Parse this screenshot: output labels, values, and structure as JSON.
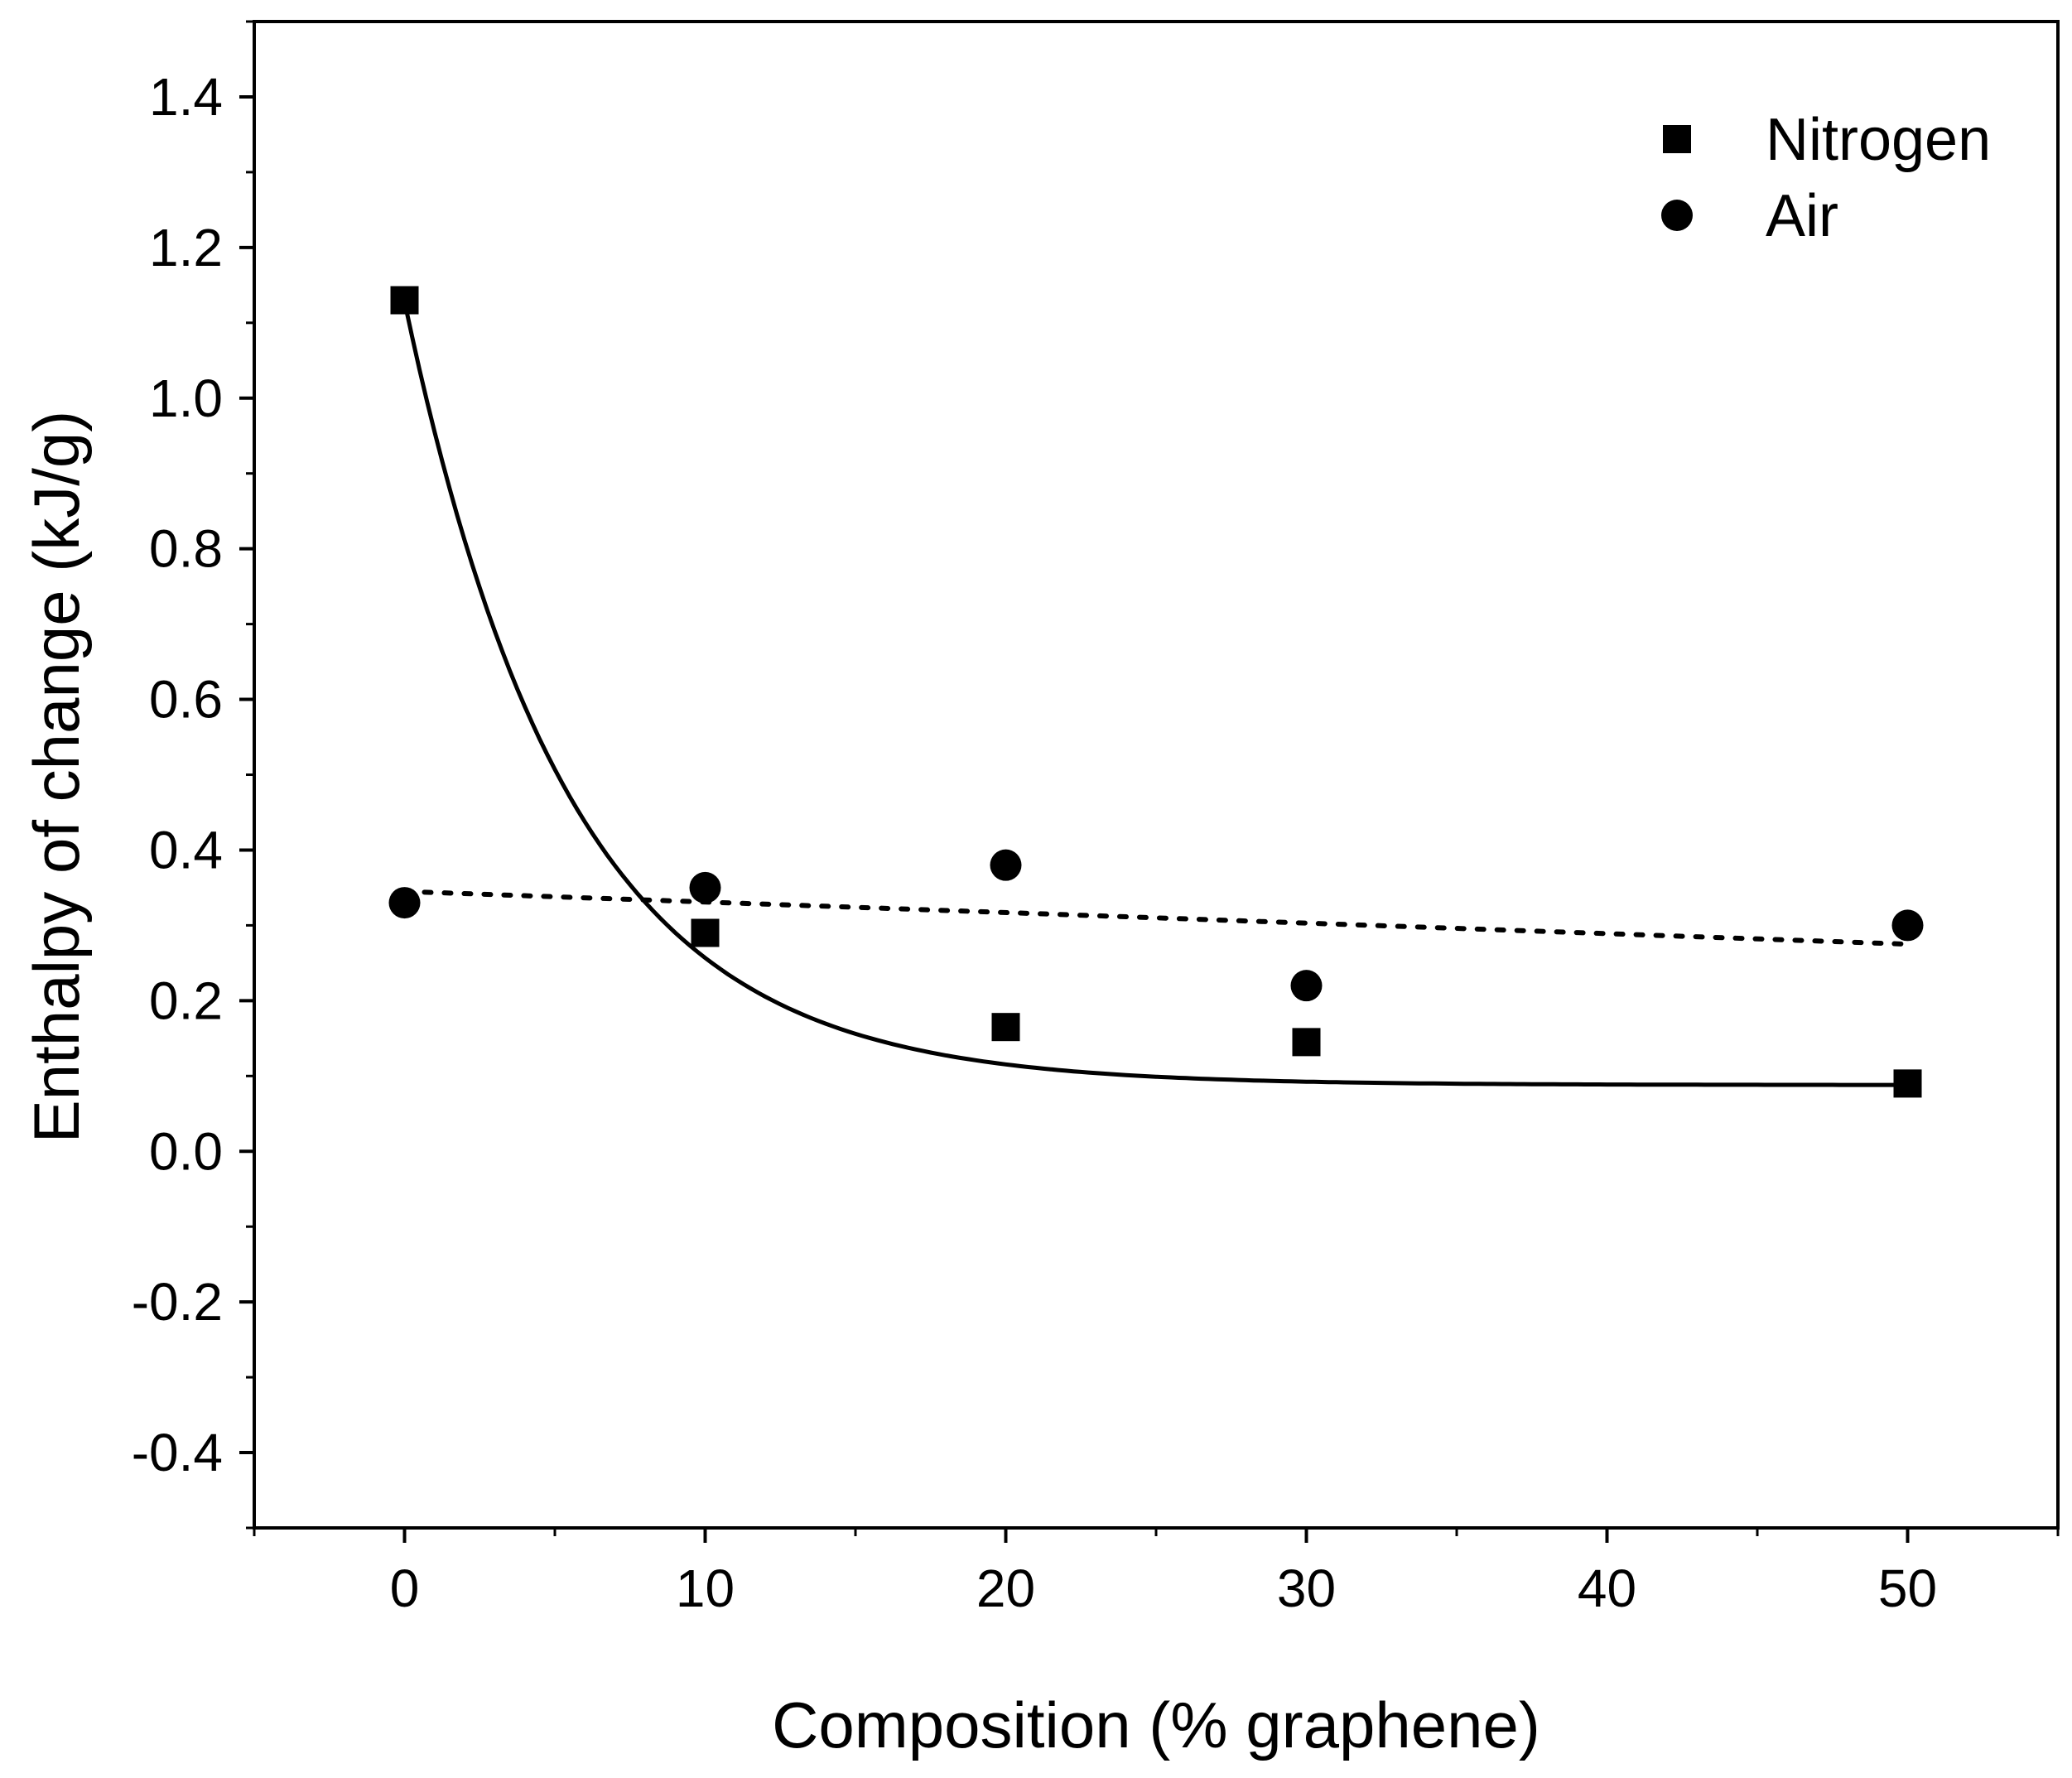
{
  "chart_data": {
    "type": "scatter",
    "title": "",
    "xlabel": "Composition (% graphene)",
    "ylabel": "Enthalpy of change (kJ/g)",
    "xlim": [
      -5,
      55
    ],
    "ylim": [
      -0.5,
      1.5
    ],
    "x_ticks": [
      0,
      10,
      20,
      30,
      40,
      50
    ],
    "x_tick_labels": [
      "0",
      "10",
      "20",
      "30",
      "40",
      "50"
    ],
    "y_ticks": [
      -0.4,
      -0.2,
      0.0,
      0.2,
      0.4,
      0.6,
      0.8,
      1.0,
      1.2,
      1.4
    ],
    "y_tick_labels": [
      "-0.4",
      "-0.2",
      "0.0",
      "0.2",
      "0.4",
      "0.6",
      "0.8",
      "1.0",
      "1.2",
      "1.4"
    ],
    "grid": false,
    "legend_position": "top-right",
    "series": [
      {
        "name": "Nitrogen",
        "marker": "square",
        "x": [
          0,
          10,
          20,
          30,
          50
        ],
        "y": [
          1.13,
          0.29,
          0.165,
          0.145,
          0.09
        ],
        "fit": {
          "style": "solid",
          "model": "exponential decay",
          "y0": 0.088,
          "A": 1.04,
          "t": 5.5,
          "x_range": [
            0,
            50
          ]
        }
      },
      {
        "name": "Air",
        "marker": "circle",
        "x": [
          0,
          10,
          20,
          30,
          50
        ],
        "y": [
          0.33,
          0.35,
          0.38,
          0.22,
          0.3
        ],
        "fit": {
          "style": "dotted",
          "model": "linear",
          "y_start": 0.345,
          "y_end": 0.275,
          "x_range": [
            0,
            50
          ]
        }
      }
    ]
  }
}
